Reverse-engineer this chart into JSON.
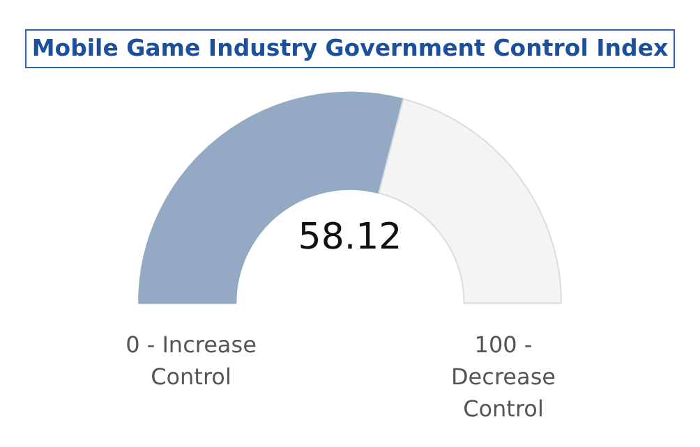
{
  "chart_data": {
    "type": "donut",
    "title": "Mobile Game Industry Government Control Index",
    "categories": [
      null,
      null
    ],
    "values": [
      58.12,
      41.88
    ],
    "colors": [
      "#93a9c4",
      "#f4f4f4"
    ],
    "value_labels": [
      "58.12",
      null
    ],
    "annotations": [
      "0 - Increase Control",
      "100 - Decrease Control"
    ],
    "legend": false
  }
}
